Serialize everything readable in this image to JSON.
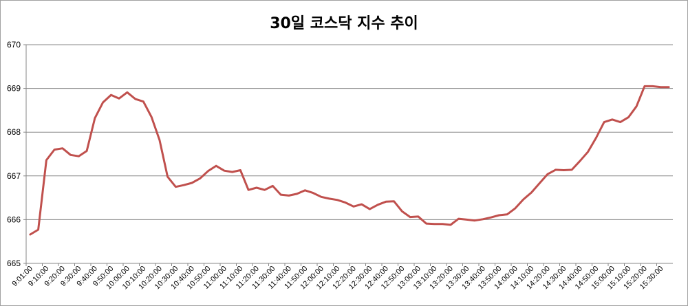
{
  "chart_data": {
    "type": "line",
    "title": "30일 코스닥 지수 추이",
    "xlabel": "",
    "ylabel": "",
    "ylim": [
      665,
      670
    ],
    "yticks": [
      "665",
      "666",
      "667",
      "668",
      "669",
      "670"
    ],
    "grid": true,
    "legend": "none",
    "line_color": "#c0504d",
    "x_tick_labels": [
      "9:01:00",
      "9:10:00",
      "9:20:00",
      "9:30:00",
      "9:40:00",
      "9:50:00",
      "10:00:00",
      "10:10:00",
      "10:20:00",
      "10:30:00",
      "10:40:00",
      "10:50:00",
      "11:00:00",
      "11:10:00",
      "11:20:00",
      "11:30:00",
      "11:40:00",
      "11:50:00",
      "12:00:00",
      "12:10:00",
      "12:20:00",
      "12:30:00",
      "12:40:00",
      "12:50:00",
      "13:00:00",
      "13:10:00",
      "13:20:00",
      "13:30:00",
      "13:40:00",
      "13:50:00",
      "14:00:00",
      "14:10:00",
      "14:20:00",
      "14:30:00",
      "14:40:00",
      "14:50:00",
      "15:00:00",
      "15:10:00",
      "15:20:00",
      "15:30:00"
    ],
    "series": [
      {
        "values": [
          665.66,
          665.77,
          667.36,
          667.6,
          667.63,
          667.48,
          667.45,
          667.57,
          668.32,
          668.68,
          668.85,
          668.77,
          668.91,
          668.76,
          668.7,
          668.35,
          667.82,
          666.98,
          666.75,
          666.79,
          666.84,
          666.94,
          667.11,
          667.23,
          667.12,
          667.09,
          667.13,
          666.68,
          666.73,
          666.68,
          666.77,
          666.57,
          666.55,
          666.59,
          666.67,
          666.61,
          666.52,
          666.48,
          666.45,
          666.39,
          666.3,
          666.35,
          666.24,
          666.34,
          666.41,
          666.42,
          666.19,
          666.06,
          666.07,
          665.91,
          665.9,
          665.9,
          665.88,
          666.02,
          666.0,
          665.98,
          666.01,
          666.05,
          666.1,
          666.12,
          666.26,
          666.46,
          666.62,
          666.83,
          667.04,
          667.14,
          667.13,
          667.14,
          667.34,
          667.55,
          667.87,
          668.23,
          668.29,
          668.23,
          668.34,
          668.59,
          669.05,
          669.05,
          669.03,
          669.03
        ]
      }
    ]
  }
}
